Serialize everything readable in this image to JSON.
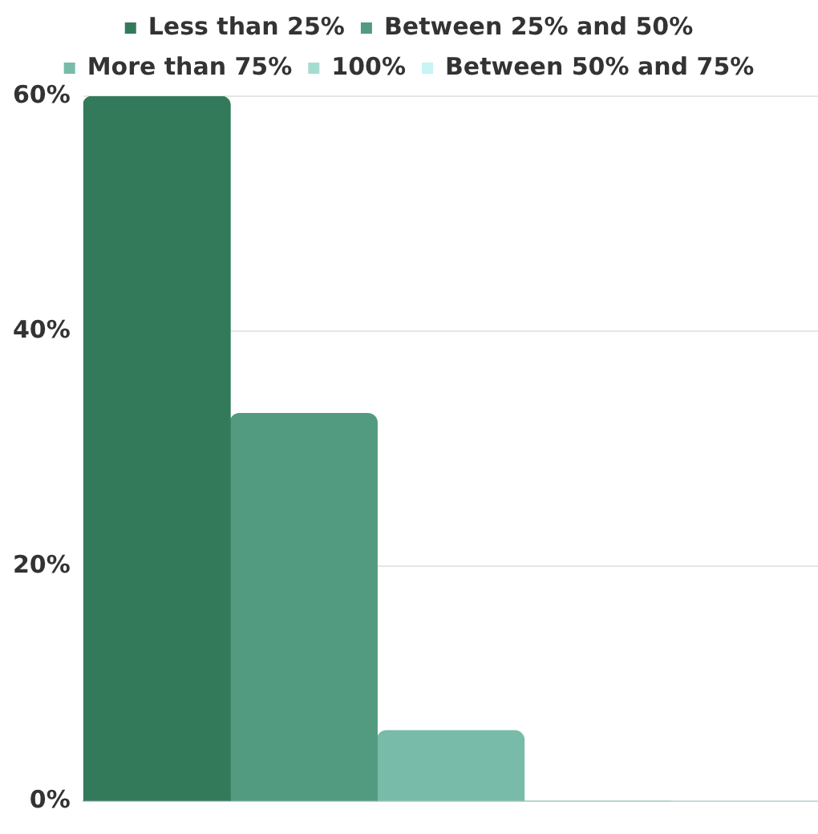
{
  "chart_data": {
    "type": "bar",
    "categories": [
      null
    ],
    "series": [
      {
        "name": "Less than 25%",
        "color": "#337a5b",
        "values": [
          60
        ]
      },
      {
        "name": "Between 25% and 50%",
        "color": "#539b80",
        "values": [
          33
        ]
      },
      {
        "name": "More than 75%",
        "color": "#78bba8",
        "values": [
          6
        ]
      },
      {
        "name": "100%",
        "color": "#a6dccf",
        "values": [
          0
        ]
      },
      {
        "name": "Between 50% and 75%",
        "color": "#c9f3f5",
        "values": [
          0
        ]
      }
    ],
    "ylim": [
      0,
      60
    ],
    "yticks": [
      {
        "value": 0,
        "label": "0%"
      },
      {
        "value": 20,
        "label": "20%"
      },
      {
        "value": 40,
        "label": "40%"
      },
      {
        "value": 60,
        "label": "60%"
      }
    ],
    "grid": "y",
    "legend": "top"
  }
}
